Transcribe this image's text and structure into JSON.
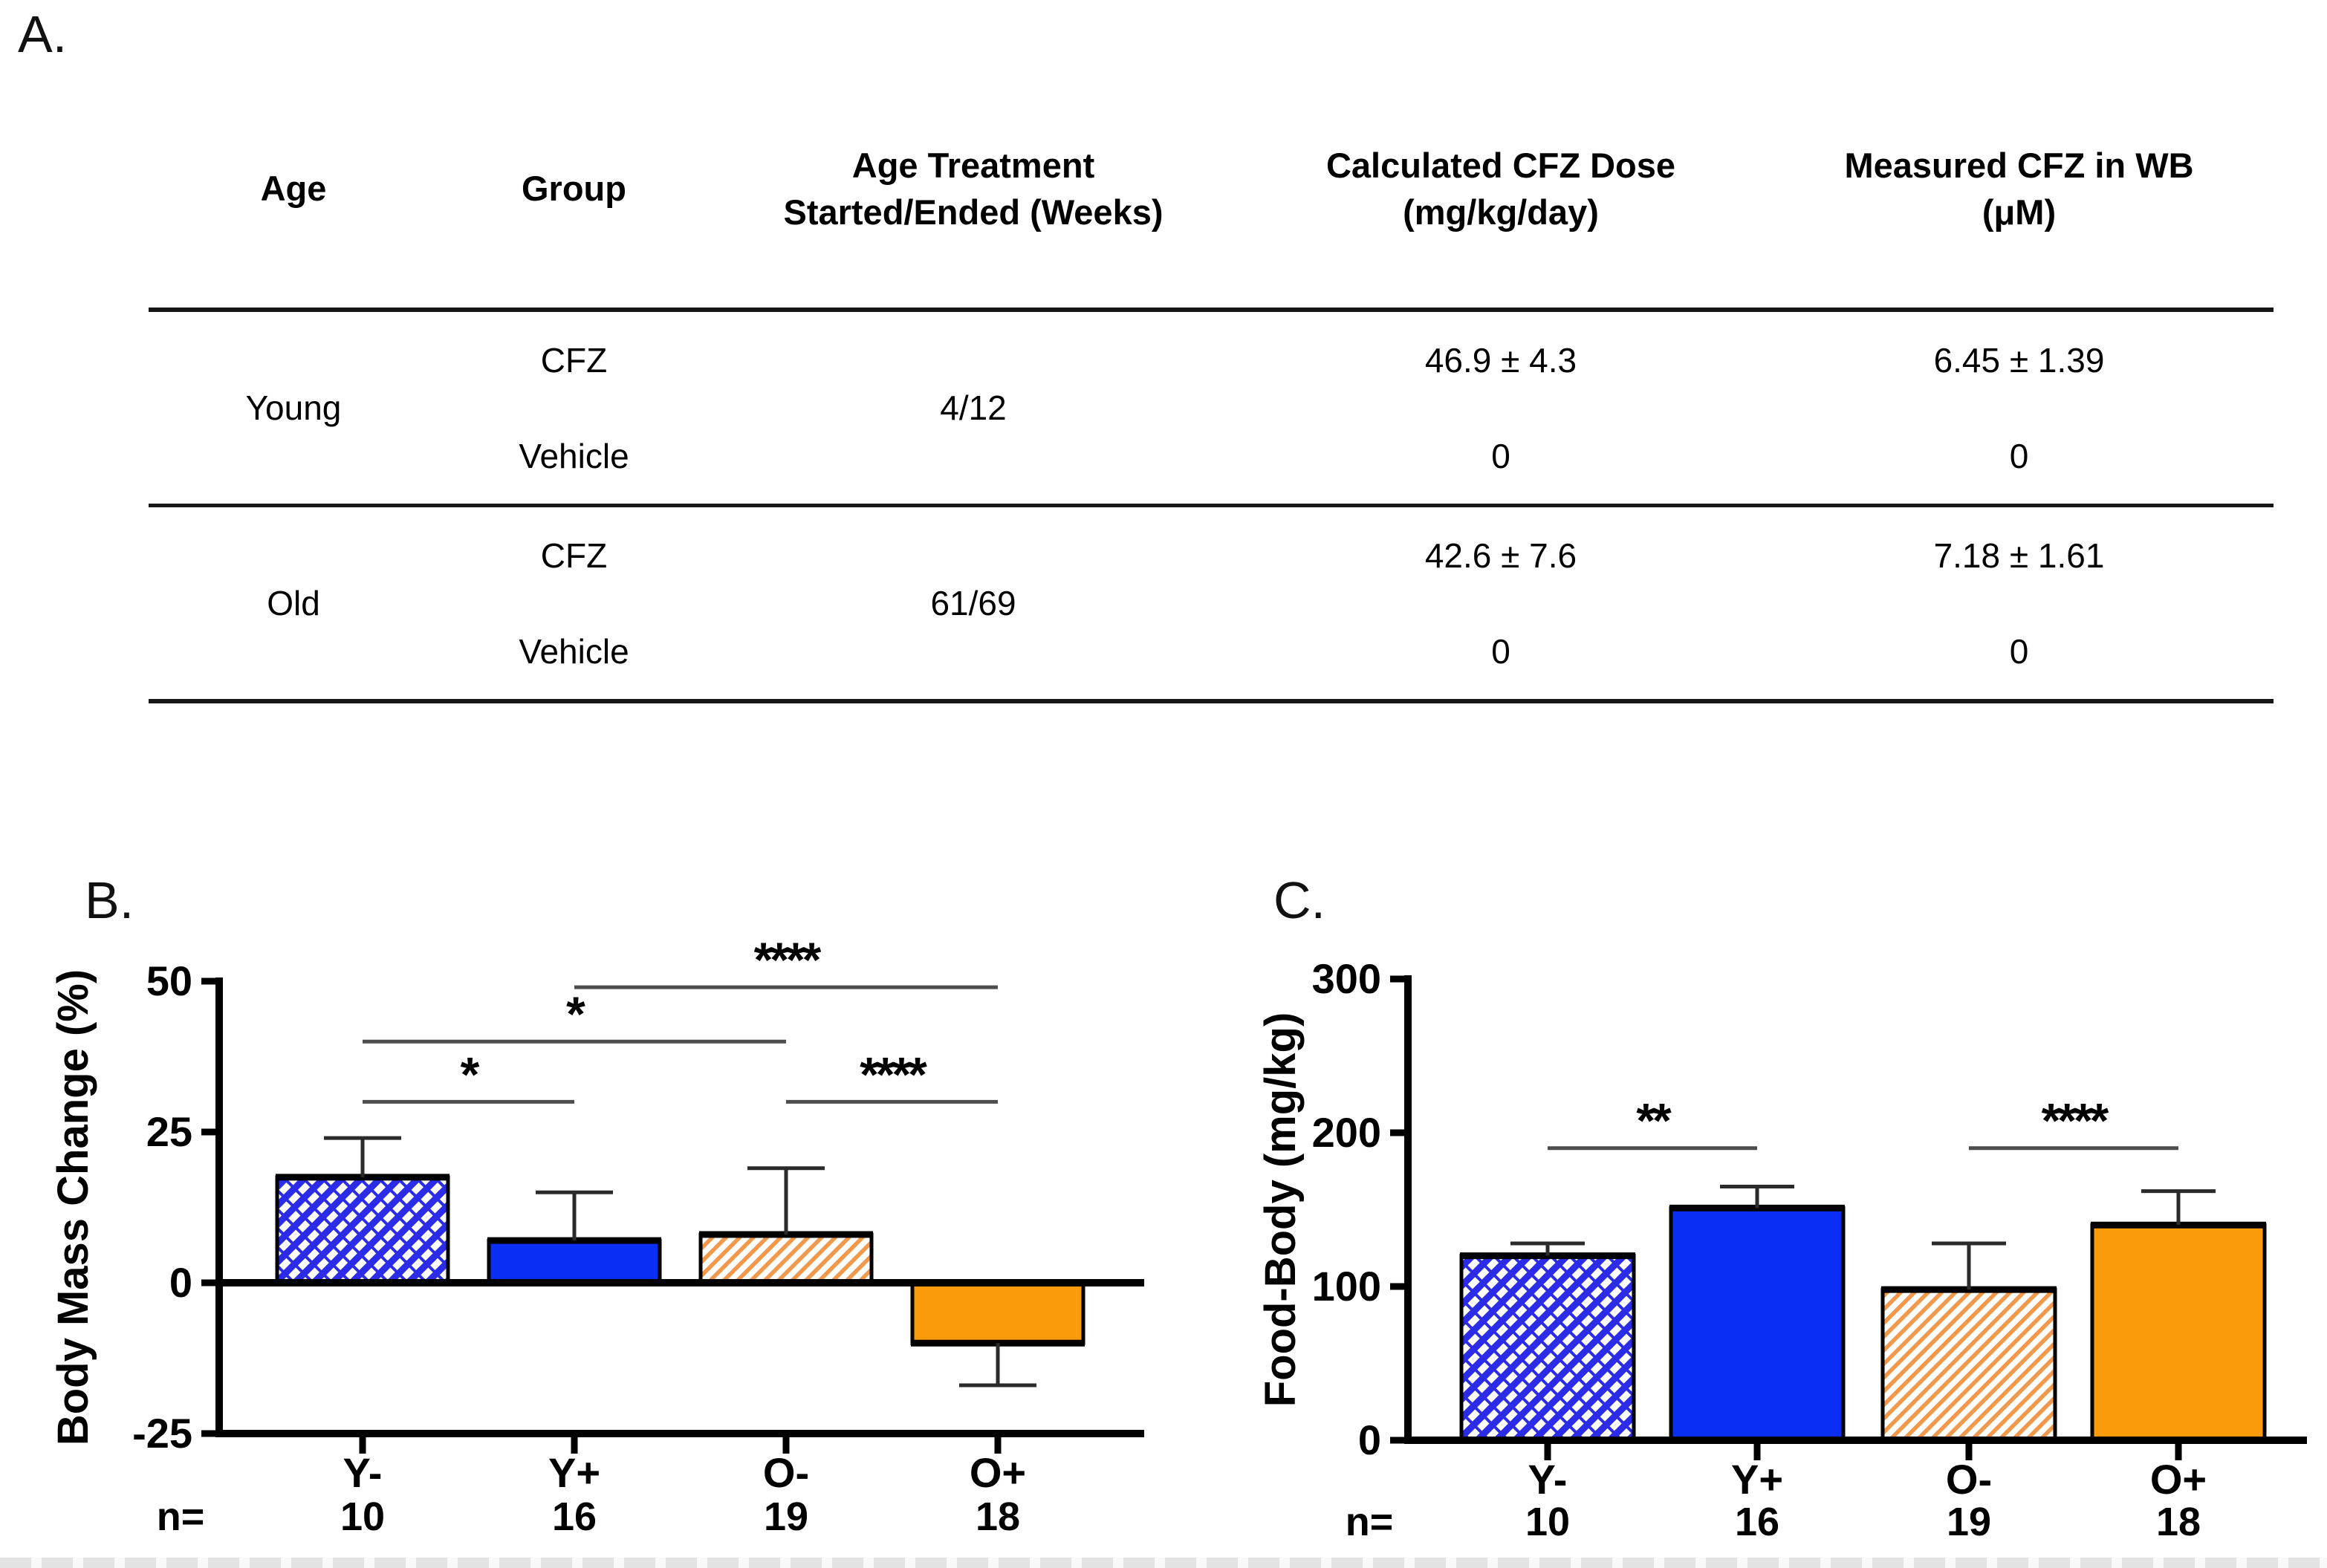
{
  "figure": {
    "panel_a_label": "A.",
    "panel_b_label": "B.",
    "panel_c_label": "C.",
    "n_prefix": "n="
  },
  "table": {
    "headers": [
      [
        "Age"
      ],
      [
        "Group"
      ],
      [
        "Age Treatment",
        "Started/Ended (Weeks)"
      ],
      [
        "Calculated CFZ Dose",
        "(mg/kg/day)"
      ],
      [
        "Measured CFZ in WB",
        "(μM)"
      ]
    ],
    "age_blocks": [
      {
        "age": "Young",
        "treatment_window": "4/12",
        "rows": [
          {
            "group": "CFZ",
            "dose": "46.9 ± 4.3",
            "wb": "6.45 ± 1.39"
          },
          {
            "group": "Vehicle",
            "dose": "0",
            "wb": "0"
          }
        ]
      },
      {
        "age": "Old",
        "treatment_window": "61/69",
        "rows": [
          {
            "group": "CFZ",
            "dose": "42.6 ± 7.6",
            "wb": "7.18 ± 1.61"
          },
          {
            "group": "Vehicle",
            "dose": "0",
            "wb": "0"
          }
        ]
      }
    ]
  },
  "colors": {
    "solid_blue": "#0A2FF2",
    "solid_orange": "#F99B0B",
    "blue_hatch": "#2B2BE8",
    "orange_hatch": "#F0994C",
    "bracket_gray": "#4D4D4D",
    "axis_black": "#000000",
    "error_bar": "#2B2B2B"
  },
  "chart_data": [
    {
      "id": "body-mass-change",
      "type": "bar",
      "title": "",
      "xlabel": "",
      "ylabel": "Body Mass Change (%)",
      "categories": [
        "Y-",
        "Y+",
        "O-",
        "O+"
      ],
      "values": [
        17.5,
        7,
        8,
        -10
      ],
      "error_to": [
        24,
        15,
        19,
        -17
      ],
      "n": [
        10,
        16,
        19,
        18
      ],
      "yticks": [
        50,
        25,
        0,
        -25
      ],
      "ylim": [
        -25,
        50
      ],
      "grid": false,
      "legend": false,
      "bar_styles": [
        "blue-crosshatch",
        "solid-blue",
        "orange-hatch",
        "solid-orange"
      ],
      "significance": [
        {
          "a": 0,
          "b": 1,
          "label": "*",
          "y": 30
        },
        {
          "a": 0,
          "b": 2,
          "label": "*",
          "y": 40
        },
        {
          "a": 1,
          "b": 3,
          "label": "****",
          "y": 49
        },
        {
          "a": 2,
          "b": 3,
          "label": "****",
          "y": 30
        }
      ]
    },
    {
      "id": "food-body",
      "type": "bar",
      "title": "",
      "xlabel": "",
      "ylabel": "Food-Body (mg/kg)",
      "categories": [
        "Y-",
        "Y+",
        "O-",
        "O+"
      ],
      "values": [
        120,
        151,
        98,
        140
      ],
      "error_to": [
        128,
        165,
        128,
        162
      ],
      "n": [
        10,
        16,
        19,
        18
      ],
      "yticks": [
        300,
        200,
        100,
        0
      ],
      "ylim": [
        0,
        300
      ],
      "grid": false,
      "legend": false,
      "bar_styles": [
        "blue-crosshatch",
        "solid-blue",
        "orange-hatch",
        "solid-orange"
      ],
      "significance": [
        {
          "a": 0,
          "b": 1,
          "label": "**",
          "y": 190
        },
        {
          "a": 2,
          "b": 3,
          "label": "****",
          "y": 190
        }
      ]
    }
  ]
}
